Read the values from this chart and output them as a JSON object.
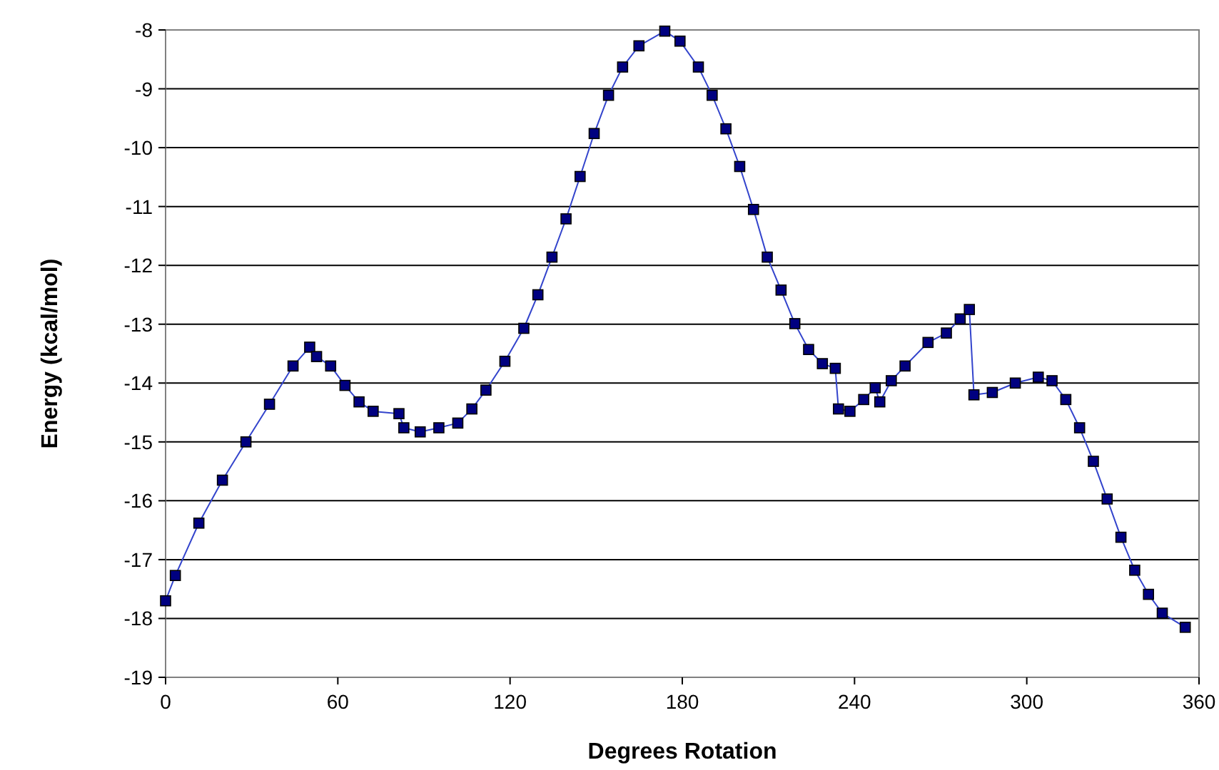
{
  "chart_data": {
    "type": "line",
    "xlabel": "Degrees Rotation",
    "ylabel": "Energy (kcal/mol)",
    "xlim": [
      0,
      360
    ],
    "xticks": [
      0,
      60,
      120,
      180,
      240,
      300,
      360
    ],
    "ylim": [
      -19,
      -8
    ],
    "yticks": [
      -19,
      -18,
      -17,
      -16,
      -15,
      -14,
      -13,
      -12,
      -11,
      -10,
      -9,
      -8
    ],
    "grid": "y",
    "marker": "square",
    "line_style": "solid",
    "series": [
      {
        "color": "#000080",
        "x": [
          0,
          3.4,
          11.6,
          19.8,
          28,
          36.2,
          44.4,
          50.2,
          52.6,
          57.5,
          62.5,
          67.4,
          72.3,
          81.3,
          83,
          88.7,
          95.2,
          101.8,
          106.7,
          111.6,
          118.2,
          124.8,
          129.7,
          134.6,
          139.5,
          144.4,
          149.3,
          154.3,
          159.2,
          164.9,
          173.9,
          179.2,
          185.6,
          190.4,
          195.2,
          200,
          204.8,
          209.6,
          214.4,
          219.2,
          224,
          228.8,
          233.3,
          234.4,
          238.4,
          243.2,
          247.2,
          248.8,
          252.8,
          257.6,
          265.6,
          272,
          276.8,
          280,
          281.6,
          288,
          296,
          304,
          308.8,
          313.6,
          318.4,
          323.2,
          328,
          332.8,
          337.6,
          342.4,
          347.2,
          355.2
        ],
        "values": [
          -17.7,
          -17.27,
          -16.38,
          -15.65,
          -15,
          -14.36,
          -13.71,
          -13.39,
          -13.55,
          -13.71,
          -14.04,
          -14.32,
          -14.48,
          -14.52,
          -14.76,
          -14.83,
          -14.76,
          -14.68,
          -14.44,
          -14.12,
          -13.63,
          -13.07,
          -12.5,
          -11.86,
          -11.21,
          -10.49,
          -9.76,
          -9.11,
          -8.63,
          -8.27,
          -8.02,
          -8.19,
          -8.63,
          -9.11,
          -9.68,
          -10.32,
          -11.05,
          -11.86,
          -12.42,
          -12.99,
          -13.43,
          -13.67,
          -13.75,
          -14.44,
          -14.48,
          -14.28,
          -14.08,
          -14.32,
          -13.96,
          -13.71,
          -13.31,
          -13.15,
          -12.91,
          -12.75,
          -14.2,
          -14.16,
          -14,
          -13.9,
          -13.96,
          -14.28,
          -14.76,
          -15.33,
          -15.97,
          -16.62,
          -17.18,
          -17.59,
          -17.91,
          -18.15
        ]
      }
    ]
  }
}
